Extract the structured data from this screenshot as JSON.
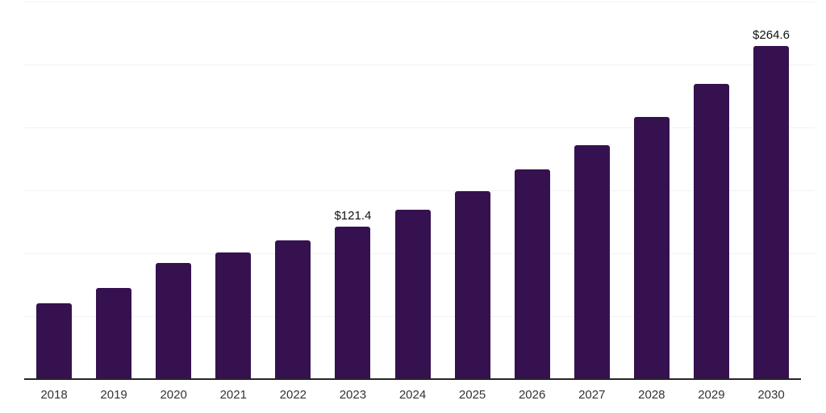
{
  "chart_data": {
    "type": "bar",
    "title": "",
    "xlabel": "",
    "ylabel": "",
    "categories": [
      "2018",
      "2019",
      "2020",
      "2021",
      "2022",
      "2023",
      "2024",
      "2025",
      "2026",
      "2027",
      "2028",
      "2029",
      "2030"
    ],
    "values": [
      60.5,
      72.3,
      92.3,
      100.6,
      110.3,
      121.4,
      134.8,
      149.6,
      166.8,
      186.0,
      208.4,
      234.8,
      264.6
    ],
    "bar_labels": [
      "",
      "",
      "",
      "",
      "",
      "$121.4",
      "",
      "",
      "",
      "",
      "",
      "",
      "$264.6"
    ],
    "ylim": [
      0,
      300
    ],
    "gridline_values": [
      50,
      100,
      150,
      200,
      250,
      300
    ],
    "grid": "horizontal-only",
    "legend": "none",
    "colors": {
      "bar": "#361150",
      "axis_line": "#262626",
      "gridline": "#f2f2f2",
      "value_label": "#111111",
      "tick_label": "#333333",
      "background": "#ffffff"
    }
  }
}
